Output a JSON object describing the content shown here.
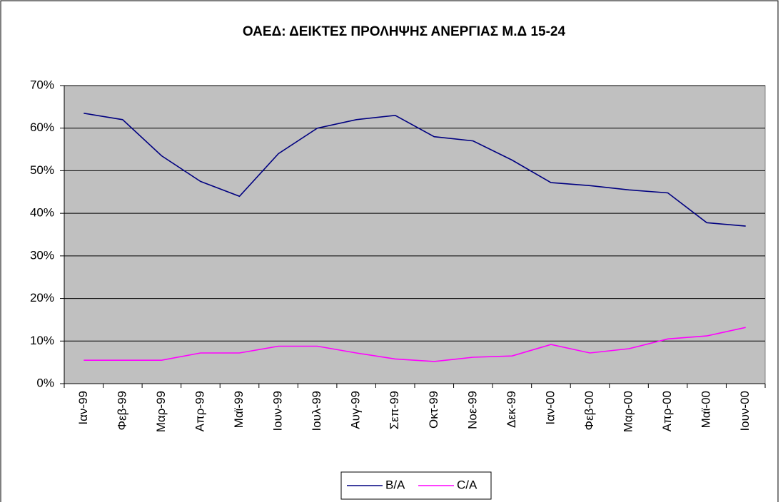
{
  "chart_data": {
    "type": "line",
    "title": "ΟΑΕΔ: ΔΕΙΚΤΕΣ ΠΡΟΛΗΨΗΣ ΑΝΕΡΓΙΑΣ Μ.Δ 15-24",
    "categories": [
      "Ιαν-99",
      "Φεβ-99",
      "Μαρ-99",
      "Απρ-99",
      "Μαϊ-99",
      "Ιουν-99",
      "Ιουλ-99",
      "Αυγ-99",
      "Σεπ-99",
      "Οκτ-99",
      "Νοε-99",
      "Δεκ-99",
      "Ιαν-00",
      "Φεβ-00",
      "Μαρ-00",
      "Απρ-00",
      "Μαϊ-00",
      "Ιουν-00"
    ],
    "series": [
      {
        "name": "B/A",
        "color": "#000080",
        "values": [
          63.5,
          62,
          53.5,
          47.5,
          44,
          54,
          60,
          62,
          63,
          58,
          57,
          52.5,
          47.2,
          46.5,
          45.5,
          44.8,
          37.8,
          37
        ]
      },
      {
        "name": "C/A",
        "color": "#ff00ff",
        "values": [
          5.5,
          5.5,
          5.5,
          7.2,
          7.2,
          8.8,
          8.8,
          7.2,
          5.8,
          5.2,
          6.2,
          6.5,
          9.2,
          7.2,
          8.2,
          10.5,
          11.2,
          13.2
        ]
      }
    ],
    "ylim": [
      0,
      70
    ],
    "yticks": [
      {
        "value": 0,
        "label": "0%"
      },
      {
        "value": 10,
        "label": "10%"
      },
      {
        "value": 20,
        "label": "20%"
      },
      {
        "value": 30,
        "label": "30%"
      },
      {
        "value": 40,
        "label": "40%"
      },
      {
        "value": 50,
        "label": "50%"
      },
      {
        "value": 60,
        "label": "60%"
      },
      {
        "value": 70,
        "label": "70%"
      }
    ],
    "grid": true,
    "legend": "bottom",
    "plot_background": "#c0c0c0"
  }
}
